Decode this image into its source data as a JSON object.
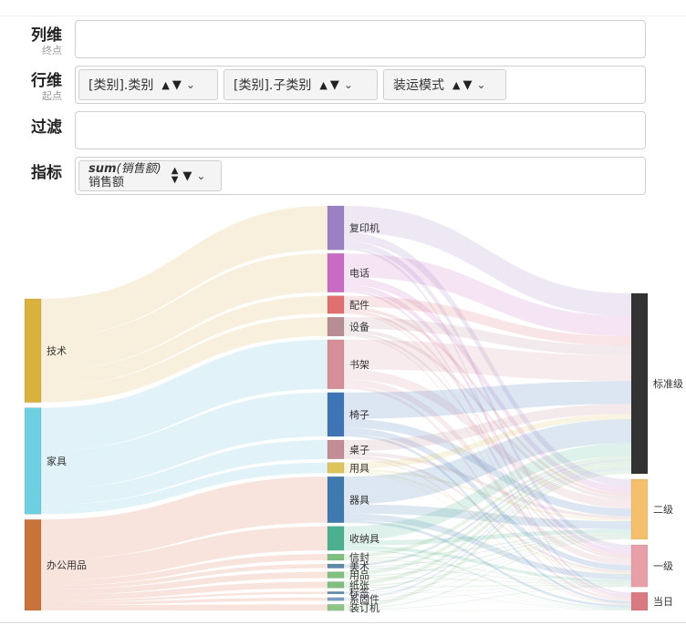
{
  "rows": {
    "columns": {
      "label": "列维",
      "sublabel": "终点"
    },
    "rows": {
      "label": "行维",
      "sublabel": "起点"
    },
    "filter": {
      "label": "过滤"
    },
    "metric": {
      "label": "指标"
    }
  },
  "row_pills": [
    {
      "text": "[类别].类别"
    },
    {
      "text": "[类别].子类别"
    },
    {
      "text": "装运模式"
    }
  ],
  "metric_pill": {
    "agg": "sum",
    "field": "(销售额)",
    "name": "销售额"
  },
  "chart_data": {
    "type": "sankey",
    "levels": [
      [
        {
          "name": "技术",
          "color": "#d9b23e"
        },
        {
          "name": "家具",
          "color": "#6ecfe0"
        },
        {
          "name": "办公用品",
          "color": "#c8733a"
        }
      ],
      [
        {
          "name": "复印机",
          "color": "#9b80c4"
        },
        {
          "name": "电话",
          "color": "#c86bc4"
        },
        {
          "name": "配件",
          "color": "#e07070"
        },
        {
          "name": "设备",
          "color": "#b78c93"
        },
        {
          "name": "书架",
          "color": "#d58f99"
        },
        {
          "name": "椅子",
          "color": "#3f75b5"
        },
        {
          "name": "桌子",
          "color": "#c48c94"
        },
        {
          "name": "用具",
          "color": "#dcc45a"
        },
        {
          "name": "器具",
          "color": "#3e7ab0"
        },
        {
          "name": "收纳具",
          "color": "#4caf90"
        },
        {
          "name": "信封",
          "color": "#7fbf80"
        },
        {
          "name": "美术",
          "color": "#5b8ba8"
        },
        {
          "name": "用品",
          "color": "#7fbf80"
        },
        {
          "name": "纸张",
          "color": "#7fbf80"
        },
        {
          "name": "标签",
          "color": "#5b8ba8"
        },
        {
          "name": "系固件",
          "color": "#7a9ec0"
        },
        {
          "name": "装订机",
          "color": "#8fc48a"
        }
      ],
      [
        {
          "name": "标准级",
          "color": "#333333"
        },
        {
          "name": "二级",
          "color": "#f5c06e"
        },
        {
          "name": "一级",
          "color": "#e8a0a8"
        },
        {
          "name": "当日",
          "color": "#d97a82"
        }
      ]
    ],
    "links_level1": [
      {
        "source": "技术",
        "target": "复印机",
        "value": 42
      },
      {
        "source": "技术",
        "target": "电话",
        "value": 37
      },
      {
        "source": "技术",
        "target": "配件",
        "value": 17
      },
      {
        "source": "技术",
        "target": "设备",
        "value": 18
      },
      {
        "source": "家具",
        "target": "书架",
        "value": 47
      },
      {
        "source": "家具",
        "target": "椅子",
        "value": 42
      },
      {
        "source": "家具",
        "target": "桌子",
        "value": 18
      },
      {
        "source": "家具",
        "target": "用具",
        "value": 10
      },
      {
        "source": "办公用品",
        "target": "器具",
        "value": 44
      },
      {
        "source": "办公用品",
        "target": "收纳具",
        "value": 23
      },
      {
        "source": "办公用品",
        "target": "信封",
        "value": 6
      },
      {
        "source": "办公用品",
        "target": "美术",
        "value": 4
      },
      {
        "source": "办公用品",
        "target": "用品",
        "value": 6
      },
      {
        "source": "办公用品",
        "target": "纸张",
        "value": 6
      },
      {
        "source": "办公用品",
        "target": "标签",
        "value": 2
      },
      {
        "source": "办公用品",
        "target": "系固件",
        "value": 3
      },
      {
        "source": "办公用品",
        "target": "装订机",
        "value": 6
      }
    ],
    "target_share": [
      0.6,
      0.2,
      0.14,
      0.06
    ]
  }
}
